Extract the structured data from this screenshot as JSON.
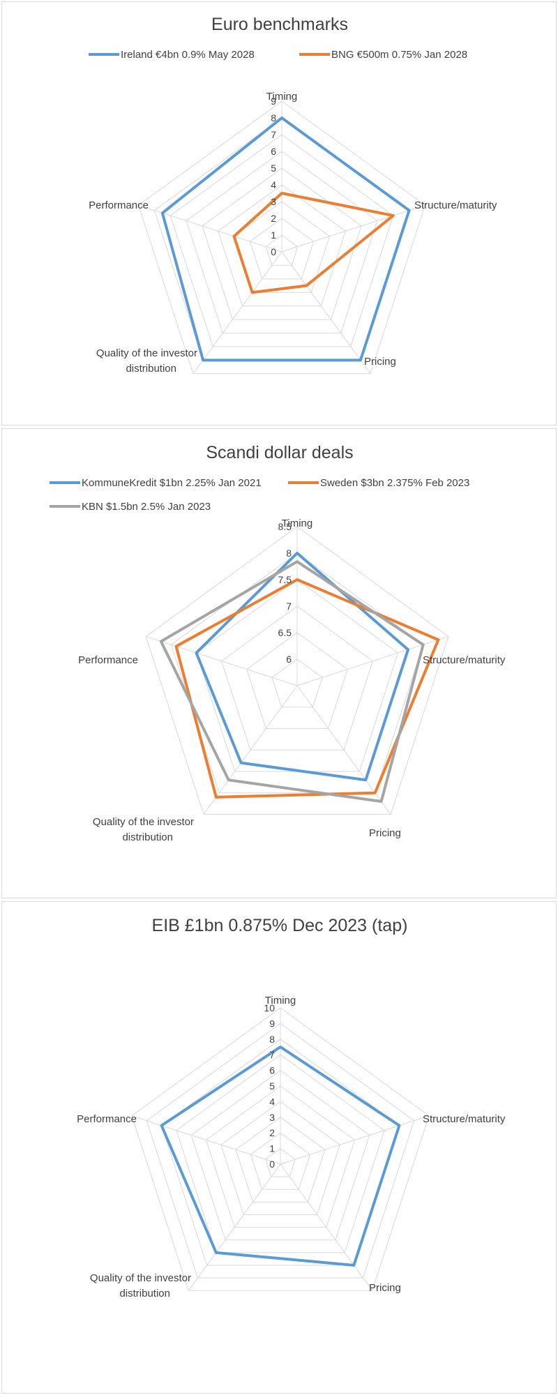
{
  "chart_data": [
    {
      "type": "radar",
      "title": "Euro benchmarks",
      "axes": [
        "Timing",
        "Structure/maturity",
        "Pricing",
        "Quality of the investor distribution",
        "Performance"
      ],
      "rlim": [
        0,
        9
      ],
      "ticks": [
        0,
        1,
        2,
        3,
        4,
        5,
        6,
        7,
        8,
        9
      ],
      "legend_position": "top",
      "series": [
        {
          "name": "Ireland €4bn 0.9% May 2028",
          "color": "#5b9bd5",
          "values": [
            8,
            8,
            8,
            8,
            7.5
          ]
        },
        {
          "name": "BNG €500m 0.75% Jan 2028",
          "color": "#ed7d31",
          "values": [
            3.5,
            7,
            2.5,
            3,
            3
          ]
        }
      ]
    },
    {
      "type": "radar",
      "title": "Scandi dollar deals",
      "axes": [
        "Timing",
        "Structure/maturity",
        "Pricing",
        "Quality of the investor distribution",
        "Performance"
      ],
      "rlim": [
        5.5,
        8.5
      ],
      "ticks": [
        6,
        6.5,
        7,
        7.5,
        8,
        8.5
      ],
      "legend_position": "top",
      "series": [
        {
          "name": "KommuneKredit $1bn 2.25% Jan 2021",
          "color": "#5b9bd5",
          "values": [
            8,
            7.7,
            7.7,
            7.3,
            7.5
          ]
        },
        {
          "name": "Sweden $3bn 2.375% Feb 2023",
          "color": "#ed7d31",
          "values": [
            7.5,
            8.3,
            8,
            8.1,
            7.9
          ]
        },
        {
          "name": "KBN $1.5bn 2.5% Jan 2023",
          "color": "#a5a5a5",
          "values": [
            7.84,
            8,
            8.2,
            7.7,
            8.2
          ]
        }
      ]
    },
    {
      "type": "radar",
      "title": "EIB £1bn 0.875% Dec 2023 (tap)",
      "axes": [
        "Timing",
        "Structure/maturity",
        "Pricing",
        "Quality of the investor distribution",
        "Performance"
      ],
      "rlim": [
        0,
        10
      ],
      "ticks": [
        0,
        1,
        2,
        3,
        4,
        5,
        6,
        7,
        8,
        9,
        10
      ],
      "legend_position": "none",
      "series": [
        {
          "name": "",
          "color": "#5b9bd5",
          "values": [
            7.5,
            8,
            8,
            7,
            8
          ]
        }
      ]
    }
  ]
}
